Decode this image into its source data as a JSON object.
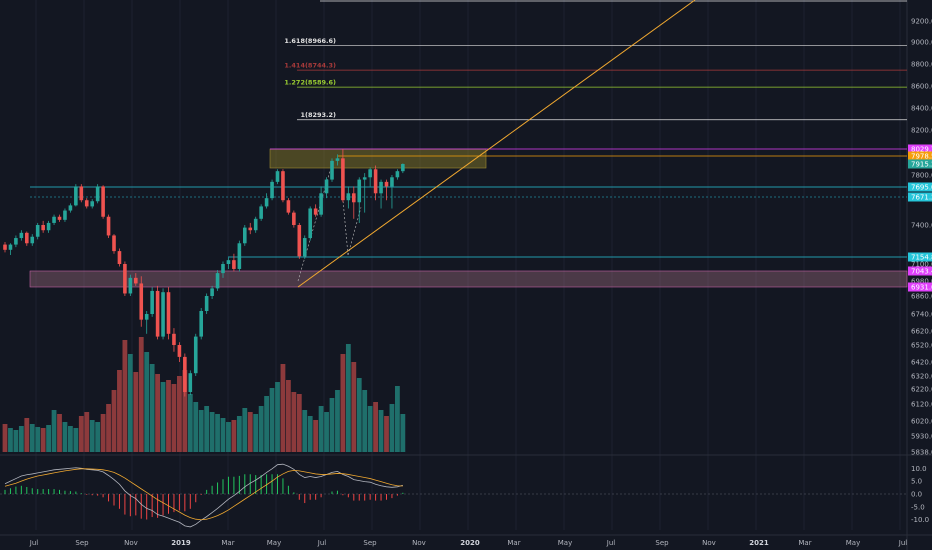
{
  "chart_data": {
    "type": "candlestick",
    "theme": {
      "background": "#131722",
      "up_color": "#26a69a",
      "down_color": "#ef5350",
      "up_vol": "#1f6f6b",
      "down_vol": "#8c3a3c",
      "grid": "#1c2030",
      "axis_text": "#b2b5be",
      "macd_line": "#b2b5be",
      "signal_line": "#f0a830",
      "hist_pos": "#22c55e",
      "hist_neg": "#ef4444"
    },
    "price_axis": {
      "min": 5838,
      "max": 9390,
      "ticks": [
        9200,
        9000,
        8800,
        8600,
        8400,
        8200,
        7800,
        7400,
        7100,
        6980,
        6860,
        6740,
        6620,
        6520,
        6420,
        6320,
        6220,
        6120,
        6020,
        5930,
        5838
      ],
      "tick_labels": [
        "9200.0",
        "9000.0",
        "8800.0",
        "8600.0",
        "8400.0",
        "8200.0",
        "7800.0",
        "7400.0",
        "7100.0",
        "6980.0",
        "6860.0",
        "6740.0",
        "6620.0",
        "6520.0",
        "6420.0",
        "6320.0",
        "6220.0",
        "6120.0",
        "6020.0",
        "5930.0",
        "5838.0"
      ]
    },
    "macd_axis": {
      "ticks": [
        10,
        5,
        0,
        -5,
        -10
      ],
      "tick_labels": [
        "10.0",
        "5.0",
        "0.0",
        "-5.0",
        "-10.0"
      ]
    },
    "time_axis": {
      "labels": [
        "Jul",
        "Sep",
        "Nov",
        "2019",
        "Mar",
        "May",
        "Jul",
        "Sep",
        "Nov",
        "2020",
        "Mar",
        "May",
        "Jul",
        "Sep",
        "Nov",
        "2021",
        "Mar",
        "May",
        "Jul"
      ],
      "bold": [
        "2019",
        "2020",
        "2021"
      ]
    },
    "price_labels": [
      {
        "text": "8029.7",
        "value": 8029.7,
        "color": "#e040fb"
      },
      {
        "text": "7978.5",
        "value": 7978.5,
        "color": "#f59e0b"
      },
      {
        "text": "7915.2",
        "value": 7915.2,
        "color": "#26a69a"
      },
      {
        "text": "7695.0",
        "value": 7695.0,
        "color": "#26c6da"
      },
      {
        "text": "7671.2",
        "value": 7671.2,
        "color": "#26c6da"
      },
      {
        "text": "7154.8",
        "value": 7154.8,
        "color": "#26c6da"
      },
      {
        "text": "7043.4",
        "value": 7043.4,
        "color": "#e040fb"
      },
      {
        "text": "6931.0",
        "value": 6931.0,
        "color": "#e040fb"
      }
    ],
    "fib_levels": [
      {
        "label": "1.618(8966.6)",
        "value": 8966.6,
        "color": "#e0e0e0"
      },
      {
        "label": "1.414(8744.3)",
        "value": 8744.3,
        "color": "#a83a3a"
      },
      {
        "label": "1.272(8589.6)",
        "value": 8589.6,
        "color": "#9acd32"
      },
      {
        "label": "1(8293.2)",
        "value": 8293.2,
        "color": "#e0e0e0"
      }
    ],
    "candles": [
      [
        7250,
        7270,
        7190,
        7210
      ],
      [
        7210,
        7260,
        7170,
        7250
      ],
      [
        7250,
        7320,
        7230,
        7300
      ],
      [
        7300,
        7360,
        7280,
        7340
      ],
      [
        7340,
        7350,
        7240,
        7260
      ],
      [
        7260,
        7330,
        7240,
        7310
      ],
      [
        7310,
        7420,
        7290,
        7400
      ],
      [
        7400,
        7440,
        7340,
        7360
      ],
      [
        7360,
        7440,
        7340,
        7420
      ],
      [
        7420,
        7500,
        7400,
        7480
      ],
      [
        7480,
        7500,
        7430,
        7450
      ],
      [
        7450,
        7560,
        7430,
        7540
      ],
      [
        7540,
        7610,
        7520,
        7590
      ],
      [
        7590,
        7720,
        7580,
        7700
      ],
      [
        7700,
        7720,
        7620,
        7640
      ],
      [
        7640,
        7660,
        7560,
        7580
      ],
      [
        7580,
        7650,
        7560,
        7630
      ],
      [
        7630,
        7720,
        7610,
        7700
      ],
      [
        7700,
        7710,
        7460,
        7480
      ],
      [
        7480,
        7500,
        7300,
        7320
      ],
      [
        7320,
        7330,
        7180,
        7200
      ],
      [
        7200,
        7220,
        7080,
        7100
      ],
      [
        7100,
        7120,
        6860,
        6880
      ],
      [
        6880,
        7020,
        6860,
        7000
      ],
      [
        7000,
        7030,
        6940,
        6960
      ],
      [
        6960,
        7010,
        6650,
        6700
      ],
      [
        6700,
        6760,
        6600,
        6740
      ],
      [
        6740,
        6930,
        6720,
        6900
      ],
      [
        6900,
        6940,
        6560,
        6580
      ],
      [
        6580,
        6920,
        6560,
        6890
      ],
      [
        6890,
        6930,
        6560,
        6600
      ],
      [
        6600,
        6640,
        6480,
        6520
      ],
      [
        6520,
        6540,
        6420,
        6450
      ],
      [
        6450,
        6470,
        6170,
        6200
      ],
      [
        6200,
        6360,
        6180,
        6340
      ],
      [
        6340,
        6600,
        6320,
        6580
      ],
      [
        6580,
        6780,
        6560,
        6760
      ],
      [
        6760,
        6880,
        6740,
        6860
      ],
      [
        6860,
        6940,
        6840,
        6920
      ],
      [
        6920,
        7050,
        6900,
        7030
      ],
      [
        7030,
        7120,
        7000,
        7100
      ],
      [
        7100,
        7150,
        7060,
        7130
      ],
      [
        7130,
        7180,
        7040,
        7060
      ],
      [
        7060,
        7280,
        7040,
        7260
      ],
      [
        7260,
        7400,
        7240,
        7380
      ],
      [
        7380,
        7420,
        7330,
        7360
      ],
      [
        7360,
        7480,
        7340,
        7460
      ],
      [
        7460,
        7600,
        7440,
        7580
      ],
      [
        7580,
        7680,
        7560,
        7660
      ],
      [
        7660,
        7760,
        7640,
        7740
      ],
      [
        7740,
        7860,
        7720,
        7840
      ],
      [
        7840,
        7860,
        7620,
        7640
      ],
      [
        7640,
        7660,
        7500,
        7520
      ],
      [
        7520,
        7540,
        7380,
        7400
      ],
      [
        7400,
        7420,
        7140,
        7160
      ],
      [
        7160,
        7320,
        7140,
        7300
      ],
      [
        7300,
        7580,
        7280,
        7560
      ],
      [
        7560,
        7600,
        7480,
        7500
      ],
      [
        7500,
        7700,
        7480,
        7680
      ],
      [
        7680,
        7780,
        7660,
        7760
      ],
      [
        7760,
        7960,
        7740,
        7940
      ],
      [
        7940,
        7990,
        7900,
        7960
      ],
      [
        7960,
        8029,
        7620,
        7640
      ],
      [
        7640,
        7700,
        7560,
        7680
      ],
      [
        7680,
        7700,
        7460,
        7620
      ],
      [
        7620,
        7780,
        7420,
        7760
      ],
      [
        7760,
        7820,
        7520,
        7780
      ],
      [
        7780,
        7880,
        7700,
        7860
      ],
      [
        7860,
        7900,
        7640,
        7680
      ],
      [
        7680,
        7760,
        7560,
        7740
      ],
      [
        7740,
        7760,
        7640,
        7700
      ],
      [
        7700,
        7800,
        7560,
        7780
      ],
      [
        7780,
        7860,
        7760,
        7840
      ],
      [
        7840,
        7920,
        7820,
        7915
      ]
    ],
    "volume": [
      28,
      24,
      22,
      26,
      34,
      28,
      25,
      24,
      27,
      42,
      38,
      30,
      26,
      24,
      36,
      40,
      32,
      30,
      38,
      48,
      62,
      82,
      112,
      98,
      80,
      115,
      100,
      88,
      78,
      70,
      72,
      68,
      76,
      82,
      58,
      50,
      42,
      46,
      40,
      38,
      34,
      30,
      32,
      36,
      44,
      40,
      38,
      46,
      56,
      64,
      70,
      88,
      72,
      60,
      58,
      42,
      36,
      32,
      46,
      40,
      54,
      62,
      98,
      108,
      90,
      74,
      62,
      46,
      50,
      42,
      36,
      48,
      66,
      38
    ],
    "macd": [
      4,
      5,
      6,
      7,
      7.5,
      7.8,
      8.2,
      8.6,
      9,
      9.4,
      9.6,
      9.8,
      10,
      10.2,
      10,
      9.6,
      9.4,
      9.2,
      8.6,
      7.2,
      5.6,
      3.8,
      1.2,
      -0.6,
      -1.8,
      -4,
      -5.6,
      -6.4,
      -8,
      -8.6,
      -9.4,
      -10.2,
      -11,
      -12.4,
      -12.8,
      -11.8,
      -10.2,
      -8.8,
      -7.2,
      -5.6,
      -3.8,
      -2,
      -0.6,
      1,
      2.8,
      4.2,
      5.4,
      6.8,
      8.4,
      9.8,
      11.4,
      11.6,
      10.8,
      9.6,
      7.6,
      6.4,
      6.8,
      6.4,
      6.8,
      7.6,
      8.4,
      8.8,
      7.6,
      6.8,
      5.6,
      5.2,
      4.8,
      4.6,
      3.8,
      3.2,
      2.8,
      2.6,
      2.8,
      3.4
    ],
    "signal": [
      3,
      3.6,
      4.2,
      5,
      5.8,
      6.4,
      7,
      7.4,
      7.8,
      8.2,
      8.6,
      9,
      9.3,
      9.6,
      9.8,
      9.8,
      9.7,
      9.6,
      9.4,
      9,
      8.4,
      7.4,
      6.2,
      4.8,
      3.4,
      2,
      0.6,
      -0.8,
      -2.2,
      -3.4,
      -4.6,
      -5.8,
      -7,
      -8.2,
      -9.2,
      -9.8,
      -10,
      -9.8,
      -9.2,
      -8.4,
      -7.4,
      -6.2,
      -4.8,
      -3.4,
      -2,
      -0.6,
      0.8,
      2.2,
      3.6,
      5,
      6.6,
      7.8,
      8.8,
      9.2,
      9,
      8.6,
      8.2,
      7.8,
      7.6,
      7.6,
      7.8,
      8,
      7.9,
      7.6,
      7.2,
      6.8,
      6.4,
      6,
      5.4,
      4.8,
      4.2,
      3.6,
      3.2,
      3.1
    ]
  }
}
